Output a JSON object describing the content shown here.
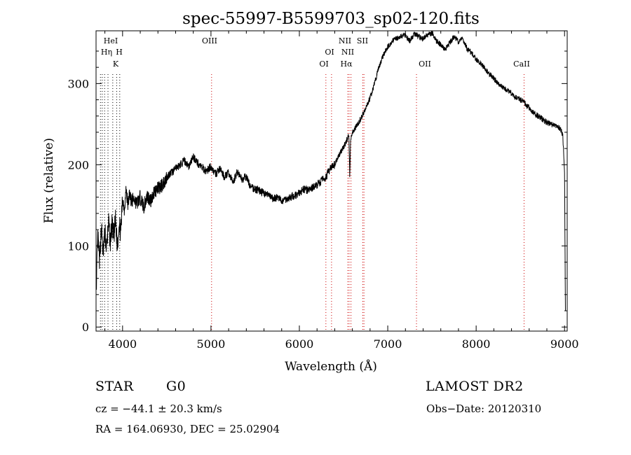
{
  "chart_data": {
    "type": "line",
    "title": "spec-55997-B5599703_sp02-120.fits",
    "xlabel": "Wavelength (Å)",
    "ylabel": "Flux (relative)",
    "xlim": [
      3700,
      9030
    ],
    "ylim": [
      -5,
      365
    ],
    "x_ticks": [
      4000,
      5000,
      6000,
      7000,
      8000,
      9000
    ],
    "y_ticks": [
      0,
      100,
      200,
      300
    ],
    "grid": false,
    "line_color": "#000000",
    "marker_color": "#cc0000",
    "series": [
      {
        "x": [
          3705,
          3720,
          3740,
          3760,
          3780,
          3800,
          3820,
          3840,
          3860,
          3880,
          3900,
          3920,
          3940,
          3960,
          3980,
          4000,
          4020,
          4040,
          4060,
          4080,
          4100,
          4130,
          4160,
          4200,
          4240,
          4280,
          4320,
          4360,
          4400,
          4450,
          4500,
          4550,
          4600,
          4650,
          4700,
          4750,
          4800,
          4850,
          4900,
          4950,
          5000,
          5050,
          5100,
          5150,
          5200,
          5250,
          5300,
          5350,
          5400,
          5450,
          5500,
          5550,
          5600,
          5650,
          5700,
          5750,
          5800,
          5850,
          5900,
          5950,
          6000,
          6050,
          6100,
          6150,
          6200,
          6250,
          6300,
          6350,
          6400,
          6450,
          6500,
          6530,
          6560,
          6570,
          6580,
          6600,
          6650,
          6700,
          6750,
          6800,
          6850,
          6900,
          6950,
          7000,
          7050,
          7100,
          7150,
          7200,
          7250,
          7300,
          7350,
          7400,
          7450,
          7500,
          7550,
          7600,
          7650,
          7700,
          7750,
          7800,
          7850,
          7900,
          7950,
          8000,
          8050,
          8100,
          8150,
          8200,
          8250,
          8300,
          8350,
          8400,
          8450,
          8500,
          8550,
          8600,
          8650,
          8700,
          8750,
          8800,
          8850,
          8900,
          8950,
          8980,
          9000,
          9010
        ],
        "y": [
          60,
          110,
          80,
          125,
          90,
          118,
          95,
          130,
          105,
          125,
          110,
          132,
          100,
          128,
          115,
          160,
          145,
          170,
          150,
          165,
          155,
          158,
          152,
          160,
          148,
          162,
          155,
          168,
          170,
          175,
          185,
          190,
          195,
          200,
          205,
          198,
          210,
          202,
          196,
          192,
          198,
          188,
          195,
          185,
          190,
          178,
          192,
          182,
          185,
          172,
          170,
          168,
          165,
          162,
          158,
          160,
          155,
          158,
          160,
          162,
          165,
          170,
          168,
          172,
          175,
          180,
          185,
          195,
          200,
          212,
          222,
          228,
          238,
          185,
          232,
          240,
          248,
          258,
          270,
          282,
          300,
          320,
          335,
          345,
          352,
          356,
          358,
          360,
          352,
          362,
          358,
          355,
          360,
          362,
          352,
          348,
          342,
          350,
          358,
          352,
          355,
          342,
          338,
          330,
          325,
          318,
          312,
          306,
          300,
          295,
          292,
          288,
          283,
          280,
          276,
          270,
          264,
          260,
          256,
          252,
          250,
          248,
          245,
          236,
          190,
          20
        ]
      }
    ],
    "line_labels": [
      {
        "text": "HeI",
        "row": 1
      },
      {
        "text": "Hη",
        "row": 2
      },
      {
        "text": "H",
        "row": 2
      },
      {
        "text": "K",
        "row": 3
      },
      {
        "text": "OIII",
        "row": 1
      },
      {
        "text": "OI",
        "row": 2
      },
      {
        "text": "OI",
        "row": 3
      },
      {
        "text": "NII",
        "row": 1
      },
      {
        "text": "SII",
        "row": 1
      },
      {
        "text": "NII",
        "row": 2
      },
      {
        "text": "Hα",
        "row": 3
      },
      {
        "text": "OII",
        "row": 3
      },
      {
        "text": "CaII",
        "row": 3
      }
    ],
    "line_markers": [
      {
        "wavelength": 3750,
        "color": "#000000"
      },
      {
        "wavelength": 3770,
        "color": "#000000"
      },
      {
        "wavelength": 3797,
        "color": "#000000"
      },
      {
        "wavelength": 3835,
        "color": "#000000"
      },
      {
        "wavelength": 3889,
        "color": "#000000"
      },
      {
        "wavelength": 3933,
        "color": "#000000"
      },
      {
        "wavelength": 3968,
        "color": "#000000"
      },
      {
        "wavelength": 5007,
        "color": "#cc0000"
      },
      {
        "wavelength": 6300,
        "color": "#cc0000"
      },
      {
        "wavelength": 6364,
        "color": "#cc0000"
      },
      {
        "wavelength": 6548,
        "color": "#cc0000"
      },
      {
        "wavelength": 6563,
        "color": "#cc0000"
      },
      {
        "wavelength": 6584,
        "color": "#cc0000"
      },
      {
        "wavelength": 6717,
        "color": "#cc0000"
      },
      {
        "wavelength": 6731,
        "color": "#cc0000"
      },
      {
        "wavelength": 7325,
        "color": "#cc0000"
      },
      {
        "wavelength": 8542,
        "color": "#cc0000"
      }
    ]
  },
  "info": {
    "class": "STAR",
    "subclass": "G0",
    "survey": "LAMOST DR2",
    "cz": "cz = −44.1 ± 20.3 km/s",
    "obs_date": "Obs−Date: 20120310",
    "coords": "RA = 164.06930, DEC =  25.02904"
  }
}
